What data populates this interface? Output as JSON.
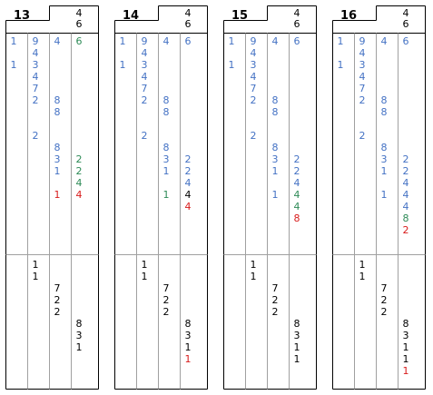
{
  "cards": [
    {
      "title": "13",
      "header": [
        "4",
        "6"
      ],
      "top": [
        [
          {
            "t": "1",
            "c": "blue"
          },
          {
            "t": "",
            "c": "blue"
          },
          {
            "t": "1",
            "c": "blue"
          }
        ],
        [
          {
            "t": "9",
            "c": "blue"
          },
          {
            "t": "4",
            "c": "blue"
          },
          {
            "t": "3",
            "c": "blue"
          },
          {
            "t": "4",
            "c": "blue"
          },
          {
            "t": "7",
            "c": "blue"
          },
          {
            "t": "2",
            "c": "blue"
          },
          {
            "t": "",
            "c": "blue"
          },
          {
            "t": "",
            "c": "blue"
          },
          {
            "t": "2",
            "c": "blue"
          }
        ],
        [
          {
            "t": "4",
            "c": "blue"
          },
          {
            "t": "",
            "c": "blue"
          },
          {
            "t": "",
            "c": "blue"
          },
          {
            "t": "",
            "c": "blue"
          },
          {
            "t": "",
            "c": "blue"
          },
          {
            "t": "8",
            "c": "blue"
          },
          {
            "t": "8",
            "c": "blue"
          },
          {
            "t": "",
            "c": "blue"
          },
          {
            "t": "",
            "c": "blue"
          },
          {
            "t": "8",
            "c": "blue"
          },
          {
            "t": "3",
            "c": "blue"
          },
          {
            "t": "1",
            "c": "blue"
          },
          {
            "t": "",
            "c": "blue"
          },
          {
            "t": "1",
            "c": "red"
          }
        ],
        [
          {
            "t": "6",
            "c": "green"
          },
          {
            "t": "",
            "c": "green"
          },
          {
            "t": "",
            "c": "green"
          },
          {
            "t": "",
            "c": "green"
          },
          {
            "t": "",
            "c": "green"
          },
          {
            "t": "",
            "c": "green"
          },
          {
            "t": "",
            "c": "green"
          },
          {
            "t": "",
            "c": "green"
          },
          {
            "t": "",
            "c": "green"
          },
          {
            "t": "",
            "c": "green"
          },
          {
            "t": "2",
            "c": "green"
          },
          {
            "t": "2",
            "c": "green"
          },
          {
            "t": "4",
            "c": "green"
          },
          {
            "t": "4",
            "c": "red"
          }
        ]
      ],
      "bottom": [
        [],
        [
          {
            "t": "1",
            "c": "black"
          },
          {
            "t": "1",
            "c": "black"
          }
        ],
        [
          {
            "t": "",
            "c": "black"
          },
          {
            "t": "",
            "c": "black"
          },
          {
            "t": "7",
            "c": "black"
          },
          {
            "t": "2",
            "c": "black"
          },
          {
            "t": "2",
            "c": "black"
          }
        ],
        [
          {
            "t": "",
            "c": "black"
          },
          {
            "t": "",
            "c": "black"
          },
          {
            "t": "",
            "c": "black"
          },
          {
            "t": "",
            "c": "black"
          },
          {
            "t": "",
            "c": "black"
          },
          {
            "t": "8",
            "c": "black"
          },
          {
            "t": "3",
            "c": "black"
          },
          {
            "t": "1",
            "c": "black"
          }
        ]
      ]
    },
    {
      "title": "14",
      "header": [
        "4",
        "6"
      ],
      "top": [
        [
          {
            "t": "1",
            "c": "blue"
          },
          {
            "t": "",
            "c": "blue"
          },
          {
            "t": "1",
            "c": "blue"
          }
        ],
        [
          {
            "t": "9",
            "c": "blue"
          },
          {
            "t": "4",
            "c": "blue"
          },
          {
            "t": "3",
            "c": "blue"
          },
          {
            "t": "4",
            "c": "blue"
          },
          {
            "t": "7",
            "c": "blue"
          },
          {
            "t": "2",
            "c": "blue"
          },
          {
            "t": "",
            "c": "blue"
          },
          {
            "t": "",
            "c": "blue"
          },
          {
            "t": "2",
            "c": "blue"
          }
        ],
        [
          {
            "t": "4",
            "c": "blue"
          },
          {
            "t": "",
            "c": "blue"
          },
          {
            "t": "",
            "c": "blue"
          },
          {
            "t": "",
            "c": "blue"
          },
          {
            "t": "",
            "c": "blue"
          },
          {
            "t": "8",
            "c": "blue"
          },
          {
            "t": "8",
            "c": "blue"
          },
          {
            "t": "",
            "c": "blue"
          },
          {
            "t": "",
            "c": "blue"
          },
          {
            "t": "8",
            "c": "blue"
          },
          {
            "t": "3",
            "c": "blue"
          },
          {
            "t": "1",
            "c": "blue"
          },
          {
            "t": "",
            "c": "blue"
          },
          {
            "t": "1",
            "c": "green"
          }
        ],
        [
          {
            "t": "6",
            "c": "blue"
          },
          {
            "t": "",
            "c": "blue"
          },
          {
            "t": "",
            "c": "blue"
          },
          {
            "t": "",
            "c": "blue"
          },
          {
            "t": "",
            "c": "blue"
          },
          {
            "t": "",
            "c": "blue"
          },
          {
            "t": "",
            "c": "blue"
          },
          {
            "t": "",
            "c": "blue"
          },
          {
            "t": "",
            "c": "blue"
          },
          {
            "t": "",
            "c": "blue"
          },
          {
            "t": "2",
            "c": "blue"
          },
          {
            "t": "2",
            "c": "blue"
          },
          {
            "t": "4",
            "c": "blue"
          },
          {
            "t": "4",
            "c": "black"
          },
          {
            "t": "4",
            "c": "red"
          }
        ]
      ],
      "bottom": [
        [],
        [
          {
            "t": "1",
            "c": "black"
          },
          {
            "t": "1",
            "c": "black"
          }
        ],
        [
          {
            "t": "",
            "c": "black"
          },
          {
            "t": "",
            "c": "black"
          },
          {
            "t": "7",
            "c": "black"
          },
          {
            "t": "2",
            "c": "black"
          },
          {
            "t": "2",
            "c": "black"
          }
        ],
        [
          {
            "t": "",
            "c": "black"
          },
          {
            "t": "",
            "c": "black"
          },
          {
            "t": "",
            "c": "black"
          },
          {
            "t": "",
            "c": "black"
          },
          {
            "t": "",
            "c": "black"
          },
          {
            "t": "8",
            "c": "black"
          },
          {
            "t": "3",
            "c": "black"
          },
          {
            "t": "1",
            "c": "black"
          },
          {
            "t": "1",
            "c": "red"
          }
        ]
      ]
    },
    {
      "title": "15",
      "header": [
        "4",
        "6"
      ],
      "top": [
        [
          {
            "t": "1",
            "c": "blue"
          },
          {
            "t": "",
            "c": "blue"
          },
          {
            "t": "1",
            "c": "blue"
          }
        ],
        [
          {
            "t": "9",
            "c": "blue"
          },
          {
            "t": "4",
            "c": "blue"
          },
          {
            "t": "3",
            "c": "blue"
          },
          {
            "t": "4",
            "c": "blue"
          },
          {
            "t": "7",
            "c": "blue"
          },
          {
            "t": "2",
            "c": "blue"
          },
          {
            "t": "",
            "c": "blue"
          },
          {
            "t": "",
            "c": "blue"
          },
          {
            "t": "2",
            "c": "blue"
          }
        ],
        [
          {
            "t": "4",
            "c": "blue"
          },
          {
            "t": "",
            "c": "blue"
          },
          {
            "t": "",
            "c": "blue"
          },
          {
            "t": "",
            "c": "blue"
          },
          {
            "t": "",
            "c": "blue"
          },
          {
            "t": "8",
            "c": "blue"
          },
          {
            "t": "8",
            "c": "blue"
          },
          {
            "t": "",
            "c": "blue"
          },
          {
            "t": "",
            "c": "blue"
          },
          {
            "t": "8",
            "c": "blue"
          },
          {
            "t": "3",
            "c": "blue"
          },
          {
            "t": "1",
            "c": "blue"
          },
          {
            "t": "",
            "c": "blue"
          },
          {
            "t": "1",
            "c": "blue"
          }
        ],
        [
          {
            "t": "6",
            "c": "blue"
          },
          {
            "t": "",
            "c": "blue"
          },
          {
            "t": "",
            "c": "blue"
          },
          {
            "t": "",
            "c": "blue"
          },
          {
            "t": "",
            "c": "blue"
          },
          {
            "t": "",
            "c": "blue"
          },
          {
            "t": "",
            "c": "blue"
          },
          {
            "t": "",
            "c": "blue"
          },
          {
            "t": "",
            "c": "blue"
          },
          {
            "t": "",
            "c": "blue"
          },
          {
            "t": "2",
            "c": "blue"
          },
          {
            "t": "2",
            "c": "blue"
          },
          {
            "t": "4",
            "c": "blue"
          },
          {
            "t": "4",
            "c": "green"
          },
          {
            "t": "4",
            "c": "green"
          },
          {
            "t": "8",
            "c": "red"
          }
        ]
      ],
      "bottom": [
        [],
        [
          {
            "t": "1",
            "c": "black"
          },
          {
            "t": "1",
            "c": "black"
          }
        ],
        [
          {
            "t": "",
            "c": "black"
          },
          {
            "t": "",
            "c": "black"
          },
          {
            "t": "7",
            "c": "black"
          },
          {
            "t": "2",
            "c": "black"
          },
          {
            "t": "2",
            "c": "black"
          }
        ],
        [
          {
            "t": "",
            "c": "black"
          },
          {
            "t": "",
            "c": "black"
          },
          {
            "t": "",
            "c": "black"
          },
          {
            "t": "",
            "c": "black"
          },
          {
            "t": "",
            "c": "black"
          },
          {
            "t": "8",
            "c": "black"
          },
          {
            "t": "3",
            "c": "black"
          },
          {
            "t": "1",
            "c": "black"
          },
          {
            "t": "1",
            "c": "black"
          }
        ]
      ]
    },
    {
      "title": "16",
      "header": [
        "4",
        "6"
      ],
      "top": [
        [
          {
            "t": "1",
            "c": "blue"
          },
          {
            "t": "",
            "c": "blue"
          },
          {
            "t": "1",
            "c": "blue"
          }
        ],
        [
          {
            "t": "9",
            "c": "blue"
          },
          {
            "t": "4",
            "c": "blue"
          },
          {
            "t": "3",
            "c": "blue"
          },
          {
            "t": "4",
            "c": "blue"
          },
          {
            "t": "7",
            "c": "blue"
          },
          {
            "t": "2",
            "c": "blue"
          },
          {
            "t": "",
            "c": "blue"
          },
          {
            "t": "",
            "c": "blue"
          },
          {
            "t": "2",
            "c": "blue"
          }
        ],
        [
          {
            "t": "4",
            "c": "blue"
          },
          {
            "t": "",
            "c": "blue"
          },
          {
            "t": "",
            "c": "blue"
          },
          {
            "t": "",
            "c": "blue"
          },
          {
            "t": "",
            "c": "blue"
          },
          {
            "t": "8",
            "c": "blue"
          },
          {
            "t": "8",
            "c": "blue"
          },
          {
            "t": "",
            "c": "blue"
          },
          {
            "t": "",
            "c": "blue"
          },
          {
            "t": "8",
            "c": "blue"
          },
          {
            "t": "3",
            "c": "blue"
          },
          {
            "t": "1",
            "c": "blue"
          },
          {
            "t": "",
            "c": "blue"
          },
          {
            "t": "1",
            "c": "blue"
          }
        ],
        [
          {
            "t": "6",
            "c": "blue"
          },
          {
            "t": "",
            "c": "blue"
          },
          {
            "t": "",
            "c": "blue"
          },
          {
            "t": "",
            "c": "blue"
          },
          {
            "t": "",
            "c": "blue"
          },
          {
            "t": "",
            "c": "blue"
          },
          {
            "t": "",
            "c": "blue"
          },
          {
            "t": "",
            "c": "blue"
          },
          {
            "t": "",
            "c": "blue"
          },
          {
            "t": "",
            "c": "blue"
          },
          {
            "t": "2",
            "c": "blue"
          },
          {
            "t": "2",
            "c": "blue"
          },
          {
            "t": "4",
            "c": "blue"
          },
          {
            "t": "4",
            "c": "blue"
          },
          {
            "t": "4",
            "c": "blue"
          },
          {
            "t": "8",
            "c": "green"
          },
          {
            "t": "2",
            "c": "red"
          }
        ]
      ],
      "bottom": [
        [],
        [
          {
            "t": "1",
            "c": "black"
          },
          {
            "t": "1",
            "c": "black"
          }
        ],
        [
          {
            "t": "",
            "c": "black"
          },
          {
            "t": "",
            "c": "black"
          },
          {
            "t": "7",
            "c": "black"
          },
          {
            "t": "2",
            "c": "black"
          },
          {
            "t": "2",
            "c": "black"
          }
        ],
        [
          {
            "t": "",
            "c": "black"
          },
          {
            "t": "",
            "c": "black"
          },
          {
            "t": "",
            "c": "black"
          },
          {
            "t": "",
            "c": "black"
          },
          {
            "t": "",
            "c": "black"
          },
          {
            "t": "8",
            "c": "black"
          },
          {
            "t": "3",
            "c": "black"
          },
          {
            "t": "1",
            "c": "black"
          },
          {
            "t": "1",
            "c": "black"
          },
          {
            "t": "1",
            "c": "red"
          }
        ]
      ]
    }
  ],
  "colors": {
    "blue": "#4472C4",
    "green": "#2E8B57",
    "red": "#D81B1B",
    "black": "#000000",
    "border": "#000000",
    "grid": "#a0a0a0"
  }
}
